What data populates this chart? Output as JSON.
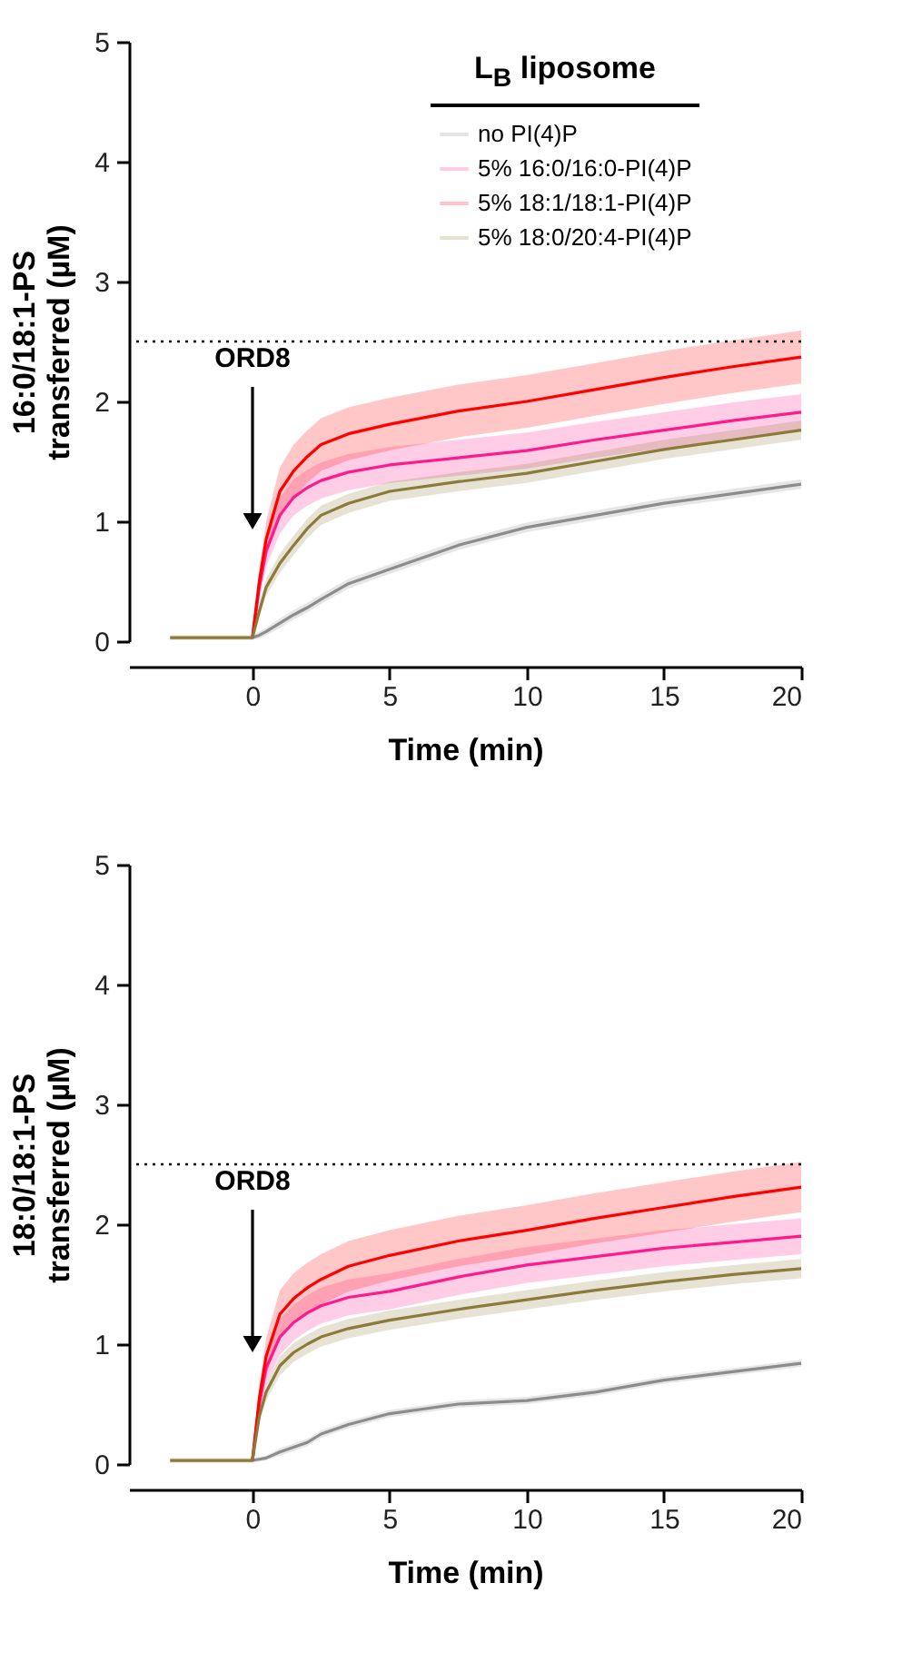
{
  "chart_data": [
    {
      "type": "line",
      "ylabel": "16:0/18:1-PS transferred (µM)",
      "xlabel": "Time (min)",
      "legend_title": "L$_{B}$ liposome",
      "legend": "top right",
      "x": [
        -3,
        -2,
        -1,
        0,
        0.25,
        0.5,
        1,
        1.5,
        2,
        2.5,
        3.5,
        5,
        7.5,
        10,
        12.5,
        15,
        17.5,
        20
      ],
      "xlim": [
        -4.5,
        20
      ],
      "xticks": [
        0,
        5,
        10,
        15,
        20
      ],
      "ylim": [
        0,
        5
      ],
      "yticks": [
        0,
        1,
        2,
        3,
        4,
        5
      ],
      "ref_lines": [
        {
          "axis": "y",
          "value": 2.5,
          "color": "#000000",
          "line_style": "dotted"
        }
      ],
      "annotations": [
        "ORD8"
      ],
      "series": [
        {
          "name": "no PI(4)P",
          "color": "#8c8c8c",
          "values": [
            null,
            null,
            null,
            0.03,
            0.05,
            0.08,
            0.15,
            0.22,
            0.28,
            0.35,
            0.48,
            0.6,
            0.8,
            0.95,
            1.05,
            1.15,
            1.23,
            1.31
          ],
          "lower": [
            null,
            null,
            null,
            0.01,
            0.02,
            0.05,
            0.11,
            0.18,
            0.24,
            0.31,
            0.44,
            0.56,
            0.76,
            0.91,
            1.01,
            1.11,
            1.19,
            1.27
          ],
          "upper": [
            null,
            null,
            null,
            0.05,
            0.08,
            0.11,
            0.19,
            0.26,
            0.32,
            0.39,
            0.52,
            0.64,
            0.84,
            0.99,
            1.09,
            1.19,
            1.27,
            1.35
          ]
        },
        {
          "name": "5% 16:0/16:0-PI(4)P",
          "color": "#ff1a8c",
          "values": [
            null,
            null,
            null,
            0.03,
            0.45,
            0.75,
            1.05,
            1.2,
            1.28,
            1.34,
            1.41,
            1.47,
            1.53,
            1.59,
            1.68,
            1.76,
            1.84,
            1.91
          ],
          "lower": [
            null,
            null,
            null,
            0.01,
            0.35,
            0.62,
            0.9,
            1.05,
            1.13,
            1.19,
            1.26,
            1.32,
            1.38,
            1.44,
            1.53,
            1.61,
            1.69,
            1.76
          ],
          "upper": [
            null,
            null,
            null,
            0.05,
            0.55,
            0.88,
            1.2,
            1.35,
            1.43,
            1.49,
            1.56,
            1.62,
            1.68,
            1.74,
            1.83,
            1.91,
            1.99,
            2.06
          ]
        },
        {
          "name": "5% 18:1/18:1-PI(4)P",
          "color": "#ff0000",
          "values": [
            null,
            null,
            null,
            0.03,
            0.5,
            0.85,
            1.25,
            1.42,
            1.54,
            1.64,
            1.73,
            1.81,
            1.92,
            2.0,
            2.1,
            2.2,
            2.29,
            2.37
          ],
          "lower": [
            null,
            null,
            null,
            0.01,
            0.4,
            0.7,
            1.05,
            1.2,
            1.32,
            1.42,
            1.51,
            1.59,
            1.7,
            1.78,
            1.88,
            1.98,
            2.07,
            2.15
          ],
          "upper": [
            null,
            null,
            null,
            0.05,
            0.6,
            1.0,
            1.45,
            1.64,
            1.76,
            1.86,
            1.95,
            2.03,
            2.14,
            2.22,
            2.32,
            2.42,
            2.51,
            2.59
          ]
        },
        {
          "name": "5% 18:0/20:4-PI(4)P",
          "color": "#8c7a3a",
          "values": [
            0.03,
            0.03,
            0.03,
            0.03,
            0.25,
            0.45,
            0.65,
            0.8,
            0.94,
            1.05,
            1.15,
            1.25,
            1.33,
            1.4,
            1.5,
            1.6,
            1.68,
            1.76
          ],
          "lower": [
            0.01,
            0.01,
            0.01,
            0.01,
            0.2,
            0.38,
            0.57,
            0.72,
            0.86,
            0.97,
            1.07,
            1.17,
            1.25,
            1.32,
            1.42,
            1.52,
            1.6,
            1.68
          ],
          "upper": [
            0.05,
            0.05,
            0.05,
            0.05,
            0.3,
            0.52,
            0.73,
            0.88,
            1.02,
            1.13,
            1.23,
            1.33,
            1.41,
            1.48,
            1.58,
            1.68,
            1.76,
            1.84
          ]
        }
      ]
    },
    {
      "type": "line",
      "ylabel": "18:0/18:1-PS transferred (µM)",
      "xlabel": "Time (min)",
      "x": [
        -3,
        -2,
        -1,
        0,
        0.25,
        0.5,
        1,
        1.5,
        2,
        2.5,
        3.5,
        5,
        7.5,
        10,
        12.5,
        15,
        17.5,
        20
      ],
      "xlim": [
        -4.5,
        20
      ],
      "xticks": [
        0,
        5,
        10,
        15,
        20
      ],
      "ylim": [
        0,
        5
      ],
      "yticks": [
        0,
        1,
        2,
        3,
        4,
        5
      ],
      "ref_lines": [
        {
          "axis": "y",
          "value": 2.5,
          "color": "#000000",
          "line_style": "dotted"
        }
      ],
      "annotations": [
        "ORD8"
      ],
      "series": [
        {
          "color": "#8c8c8c",
          "values": [
            null,
            null,
            null,
            0.03,
            0.04,
            0.05,
            0.1,
            0.14,
            0.18,
            0.25,
            0.33,
            0.42,
            0.5,
            0.53,
            0.6,
            0.7,
            0.77,
            0.84
          ],
          "lower": [
            null,
            null,
            null,
            0.01,
            0.02,
            0.03,
            0.07,
            0.11,
            0.15,
            0.22,
            0.3,
            0.39,
            0.47,
            0.5,
            0.57,
            0.67,
            0.74,
            0.81
          ],
          "upper": [
            null,
            null,
            null,
            0.05,
            0.06,
            0.07,
            0.13,
            0.17,
            0.21,
            0.28,
            0.36,
            0.45,
            0.53,
            0.56,
            0.63,
            0.73,
            0.8,
            0.87
          ]
        },
        {
          "color": "#ff1a8c",
          "values": [
            null,
            null,
            null,
            0.03,
            0.5,
            0.8,
            1.06,
            1.18,
            1.26,
            1.32,
            1.39,
            1.44,
            1.56,
            1.66,
            1.73,
            1.8,
            1.85,
            1.9
          ],
          "lower": [
            null,
            null,
            null,
            0.01,
            0.4,
            0.67,
            0.91,
            1.03,
            1.11,
            1.17,
            1.24,
            1.29,
            1.41,
            1.51,
            1.58,
            1.65,
            1.7,
            1.75
          ],
          "upper": [
            null,
            null,
            null,
            0.05,
            0.6,
            0.93,
            1.21,
            1.33,
            1.41,
            1.47,
            1.54,
            1.59,
            1.71,
            1.81,
            1.88,
            1.95,
            2.0,
            2.05
          ]
        },
        {
          "color": "#ff0000",
          "values": [
            null,
            null,
            null,
            0.03,
            0.55,
            0.9,
            1.25,
            1.38,
            1.47,
            1.54,
            1.65,
            1.74,
            1.86,
            1.95,
            2.05,
            2.14,
            2.23,
            2.31
          ],
          "lower": [
            null,
            null,
            null,
            0.01,
            0.45,
            0.75,
            1.05,
            1.17,
            1.26,
            1.33,
            1.44,
            1.53,
            1.65,
            1.74,
            1.84,
            1.93,
            2.02,
            2.1
          ],
          "upper": [
            null,
            null,
            null,
            0.05,
            0.65,
            1.05,
            1.45,
            1.59,
            1.68,
            1.75,
            1.86,
            1.95,
            2.07,
            2.16,
            2.26,
            2.35,
            2.44,
            2.52
          ]
        },
        {
          "color": "#8c7a3a",
          "values": [
            0.03,
            0.03,
            0.03,
            0.03,
            0.4,
            0.6,
            0.82,
            0.93,
            1.0,
            1.06,
            1.13,
            1.2,
            1.29,
            1.37,
            1.45,
            1.52,
            1.58,
            1.63
          ],
          "lower": [
            0.01,
            0.01,
            0.01,
            0.01,
            0.34,
            0.53,
            0.74,
            0.85,
            0.92,
            0.98,
            1.05,
            1.12,
            1.21,
            1.29,
            1.37,
            1.44,
            1.5,
            1.55
          ],
          "upper": [
            0.05,
            0.05,
            0.05,
            0.05,
            0.46,
            0.67,
            0.9,
            1.01,
            1.08,
            1.14,
            1.21,
            1.28,
            1.37,
            1.45,
            1.53,
            1.6,
            1.66,
            1.71
          ]
        }
      ]
    }
  ]
}
